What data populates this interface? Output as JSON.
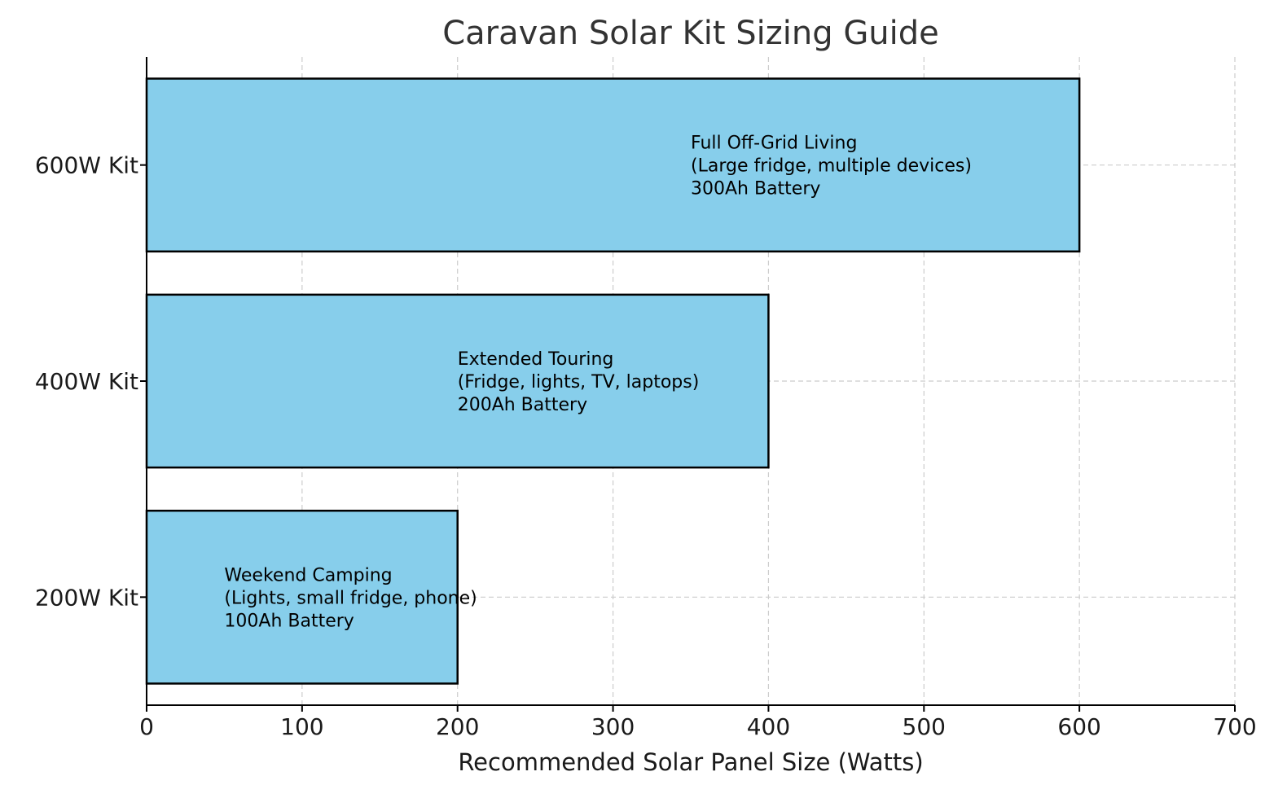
{
  "chart_data": {
    "type": "bar",
    "orientation": "horizontal",
    "title": "Caravan Solar Kit Sizing Guide",
    "xlabel": "Recommended Solar Panel Size (Watts)",
    "ylabel": "",
    "xlim": [
      0,
      700
    ],
    "x_ticks": [
      "0",
      "100",
      "200",
      "300",
      "400",
      "500",
      "600",
      "700"
    ],
    "categories": [
      "200W Kit",
      "400W Kit",
      "600W Kit"
    ],
    "values": [
      200,
      400,
      600
    ],
    "annotations": [
      {
        "line1": "Weekend Camping",
        "line2": "(Lights, small fridge, phone)",
        "line3": "100Ah Battery",
        "x": 50
      },
      {
        "line1": "Extended Touring",
        "line2": "(Fridge, lights, TV, laptops)",
        "line3": "200Ah Battery",
        "x": 200
      },
      {
        "line1": "Full Off-Grid Living",
        "line2": "(Large fridge, multiple devices)",
        "line3": "300Ah Battery",
        "x": 350
      }
    ],
    "grid": true,
    "colors": {
      "bar": "#87CEEB",
      "edge": "#000000"
    }
  }
}
